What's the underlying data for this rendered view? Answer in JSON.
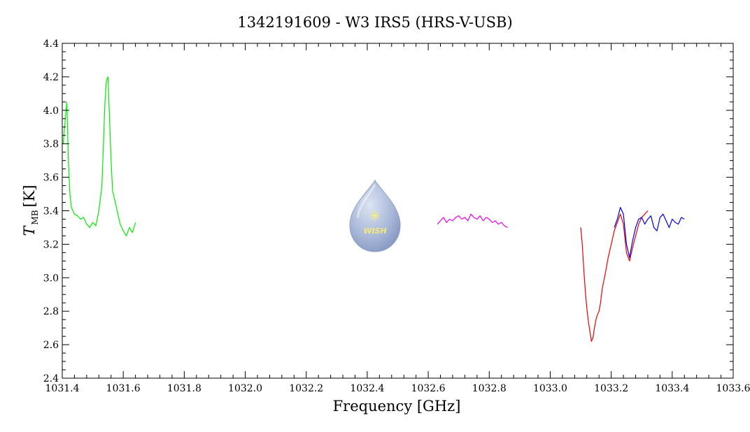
{
  "chart_data": {
    "type": "line",
    "title": "1342191609 - W3 IRS5 (HRS-V-USB)",
    "xlabel": "Frequency [GHz]",
    "ylabel": {
      "main": "T",
      "sub": "MB",
      "unit": "[K]"
    },
    "xlim": [
      1031.4,
      1033.6
    ],
    "ylim": [
      2.4,
      4.4
    ],
    "x_ticks": [
      "1031.4",
      "1031.6",
      "1031.8",
      "1032.0",
      "1032.2",
      "1032.4",
      "1032.6",
      "1032.8",
      "1033.0",
      "1033.2",
      "1033.4",
      "1033.6"
    ],
    "y_ticks": [
      "2.4",
      "2.6",
      "2.8",
      "3.0",
      "3.2",
      "3.4",
      "3.6",
      "3.8",
      "4.0",
      "4.2",
      "4.4"
    ],
    "grid": false,
    "logo": {
      "text": "WISH"
    },
    "series": [
      {
        "color": "#00ee00",
        "x": [
          1031.403,
          1031.41,
          1031.415,
          1031.42,
          1031.425,
          1031.43,
          1031.44,
          1031.45,
          1031.46,
          1031.47,
          1031.48,
          1031.49,
          1031.5,
          1031.51,
          1031.52,
          1031.53,
          1031.535,
          1031.54,
          1031.545,
          1031.55,
          1031.555,
          1031.56,
          1031.565,
          1031.57,
          1031.58,
          1031.59,
          1031.6,
          1031.61,
          1031.62,
          1031.63,
          1031.64
        ],
        "y": [
          3.8,
          3.95,
          4.05,
          3.7,
          3.5,
          3.42,
          3.38,
          3.37,
          3.35,
          3.36,
          3.32,
          3.3,
          3.33,
          3.31,
          3.4,
          3.55,
          3.8,
          4.05,
          4.18,
          4.2,
          3.95,
          3.7,
          3.52,
          3.48,
          3.4,
          3.32,
          3.28,
          3.25,
          3.3,
          3.27,
          3.33
        ]
      },
      {
        "color": "#ee00ee",
        "x": [
          1032.63,
          1032.64,
          1032.65,
          1032.66,
          1032.67,
          1032.68,
          1032.69,
          1032.7,
          1032.71,
          1032.72,
          1032.73,
          1032.74,
          1032.75,
          1032.76,
          1032.77,
          1032.78,
          1032.79,
          1032.8,
          1032.81,
          1032.82,
          1032.83,
          1032.84,
          1032.85,
          1032.86
        ],
        "y": [
          3.32,
          3.34,
          3.36,
          3.33,
          3.35,
          3.34,
          3.36,
          3.37,
          3.35,
          3.36,
          3.34,
          3.38,
          3.36,
          3.35,
          3.37,
          3.34,
          3.36,
          3.35,
          3.33,
          3.34,
          3.32,
          3.33,
          3.31,
          3.3
        ]
      },
      {
        "color": "#ee0000",
        "x": [
          1033.1,
          1033.105,
          1033.11,
          1033.115,
          1033.12,
          1033.125,
          1033.13,
          1033.135,
          1033.14,
          1033.145,
          1033.15,
          1033.155,
          1033.16,
          1033.165,
          1033.17,
          1033.18,
          1033.19,
          1033.2,
          1033.21,
          1033.22,
          1033.23,
          1033.24,
          1033.25,
          1033.26,
          1033.27,
          1033.28,
          1033.29,
          1033.3,
          1033.31,
          1033.32
        ],
        "y": [
          3.3,
          3.2,
          3.05,
          2.92,
          2.82,
          2.74,
          2.68,
          2.62,
          2.64,
          2.7,
          2.75,
          2.78,
          2.8,
          2.85,
          2.93,
          3.02,
          3.12,
          3.2,
          3.28,
          3.33,
          3.38,
          3.32,
          3.15,
          3.1,
          3.18,
          3.25,
          3.32,
          3.36,
          3.38,
          3.4
        ]
      },
      {
        "color": "#0000ee",
        "x": [
          1033.21,
          1033.22,
          1033.23,
          1033.24,
          1033.25,
          1033.26,
          1033.27,
          1033.28,
          1033.29,
          1033.3,
          1033.31,
          1033.32,
          1033.33,
          1033.34,
          1033.35,
          1033.36,
          1033.37,
          1033.38,
          1033.39,
          1033.4,
          1033.41,
          1033.42,
          1033.43,
          1033.44
        ],
        "y": [
          3.3,
          3.35,
          3.42,
          3.38,
          3.2,
          3.12,
          3.22,
          3.3,
          3.35,
          3.36,
          3.32,
          3.35,
          3.37,
          3.3,
          3.28,
          3.36,
          3.38,
          3.34,
          3.3,
          3.35,
          3.33,
          3.32,
          3.36,
          3.35
        ]
      }
    ]
  }
}
